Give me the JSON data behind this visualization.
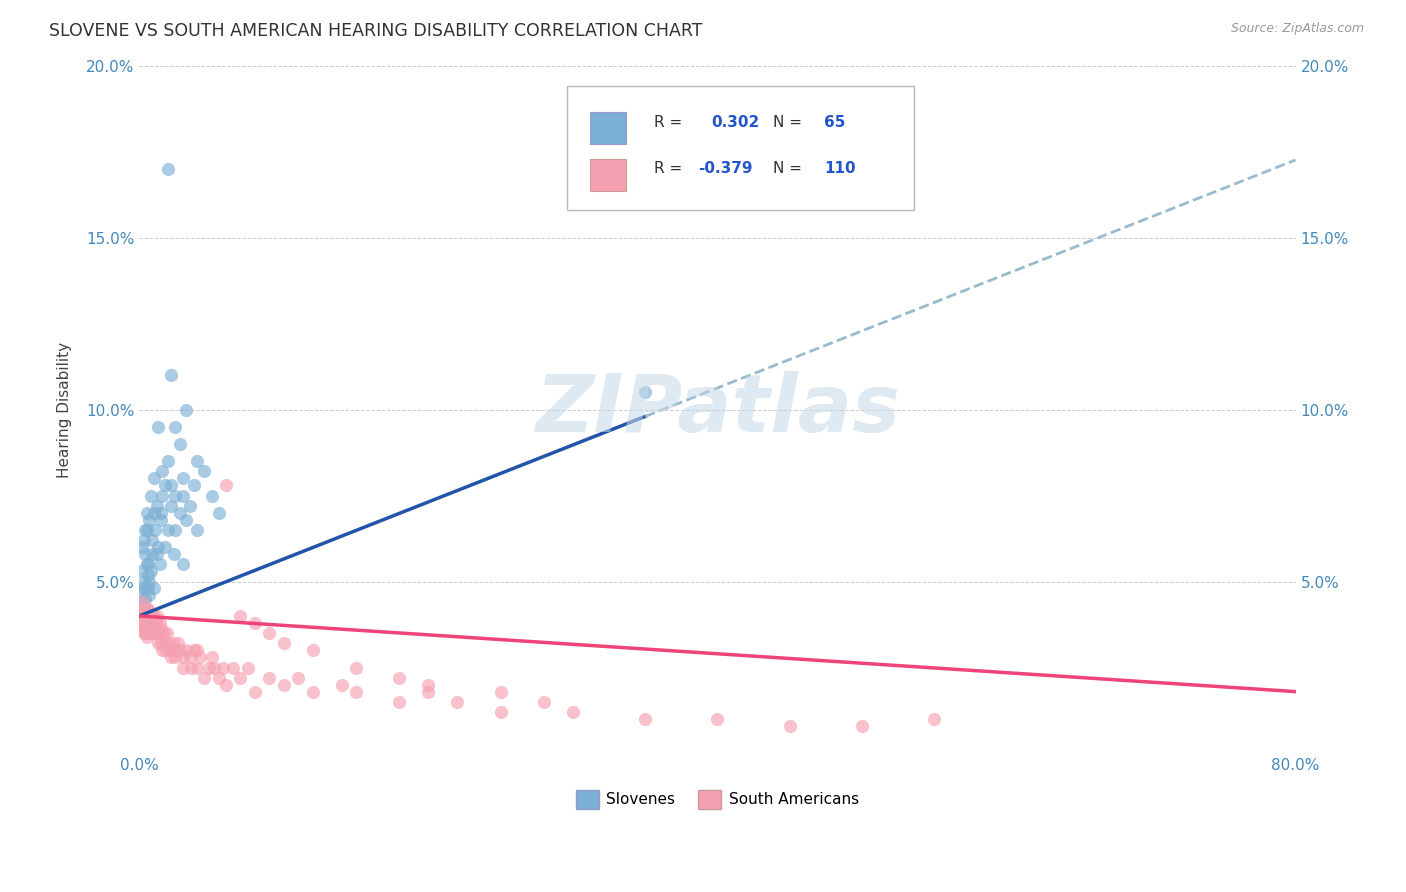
{
  "title": "SLOVENE VS SOUTH AMERICAN HEARING DISABILITY CORRELATION CHART",
  "source": "Source: ZipAtlas.com",
  "ylabel": "Hearing Disability",
  "xlim": [
    0.0,
    0.8
  ],
  "ylim": [
    0.0,
    0.2
  ],
  "slovene_color": "#7BAFD4",
  "south_american_color": "#F5A0B0",
  "slovene_line_color": "#2255AA",
  "south_american_line_color": "#EE4477",
  "dashed_line_color": "#99BBCC",
  "background_color": "#FFFFFF",
  "grid_color": "#CCCCCC",
  "watermark_color": "#C5D8E8",
  "legend_label_1": "Slovenes",
  "legend_label_2": "South Americans",
  "slovene_R": 0.302,
  "slovene_N": 65,
  "south_american_R": -0.379,
  "south_american_N": 110,
  "blue_line_x0": 0.0,
  "blue_line_y0": 0.04,
  "blue_line_x1": 0.35,
  "blue_line_y1": 0.098,
  "pink_line_x0": 0.0,
  "pink_line_y0": 0.04,
  "pink_line_x1": 0.8,
  "pink_line_y1": 0.018
}
